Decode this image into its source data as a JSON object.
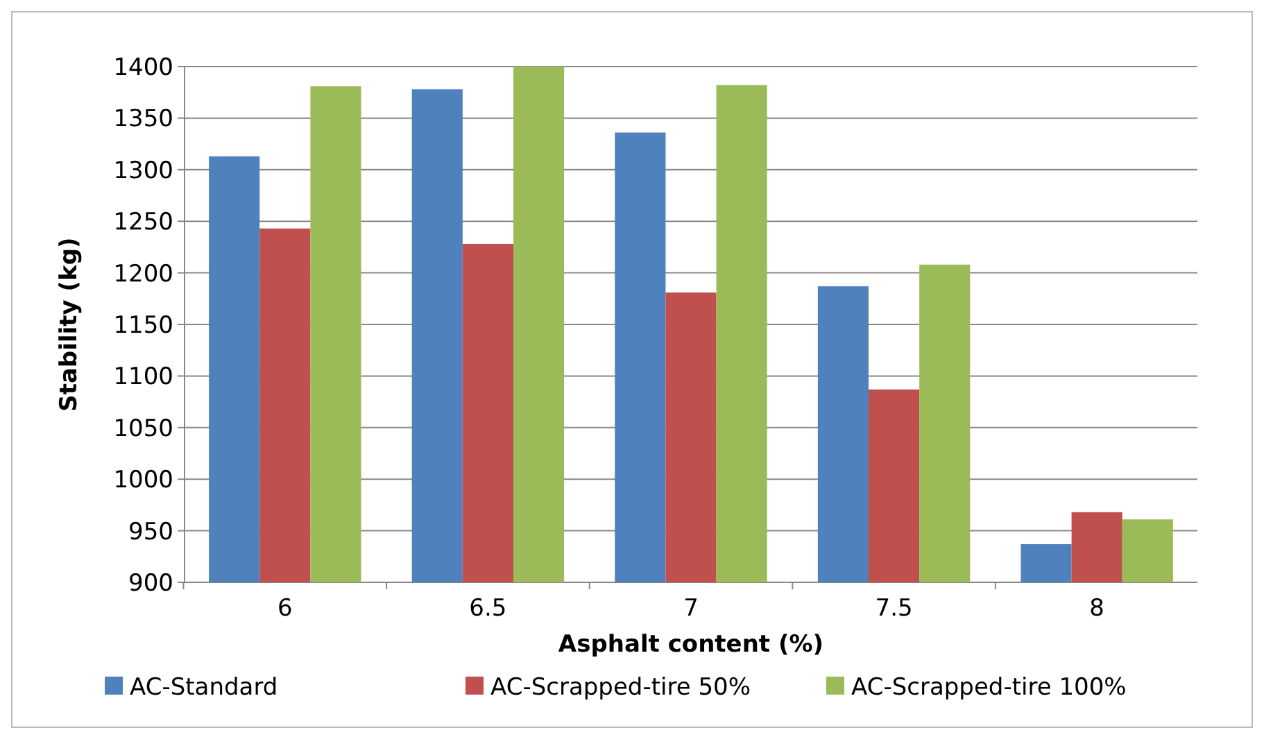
{
  "chart_data": {
    "type": "bar",
    "xlabel": "Asphalt content (%)",
    "ylabel": "Stability (kg)",
    "categories": [
      "6",
      "6.5",
      "7",
      "7.5",
      "8"
    ],
    "series": [
      {
        "name": "AC-Standard",
        "color": "#4f81bd",
        "values": [
          1313,
          1378,
          1336,
          1187,
          937
        ]
      },
      {
        "name": "AC-Scrapped-tire 50%",
        "color": "#c0504d",
        "values": [
          1243,
          1228,
          1181,
          1087,
          968
        ]
      },
      {
        "name": "AC-Scrapped-tire 100%",
        "color": "#9bbb59",
        "values": [
          1381,
          1400,
          1382,
          1208,
          961
        ]
      }
    ],
    "ylim": [
      900,
      1400
    ],
    "yticks": [
      900,
      950,
      1000,
      1050,
      1100,
      1150,
      1200,
      1250,
      1300,
      1350,
      1400
    ],
    "grid": "y",
    "legend": "bottom"
  }
}
